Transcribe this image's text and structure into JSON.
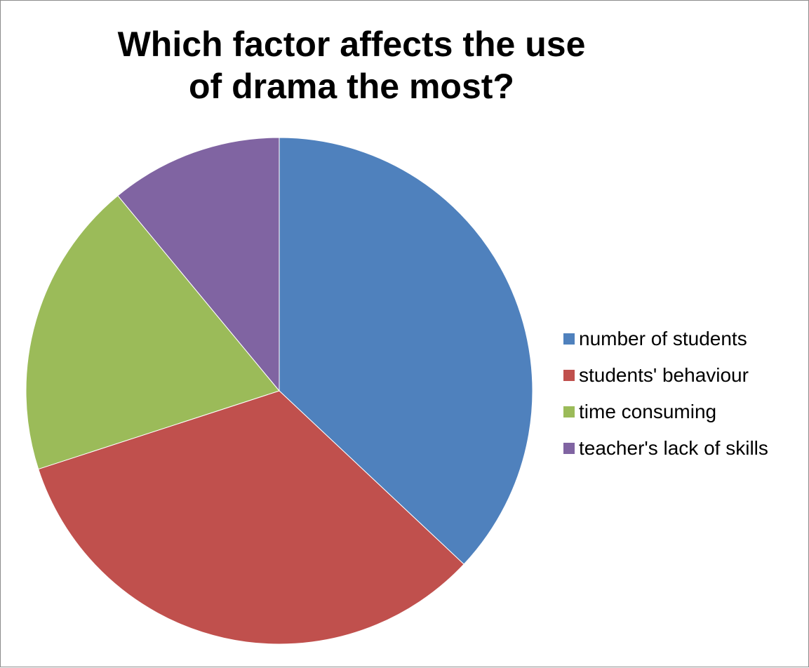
{
  "chart_data": {
    "type": "pie",
    "title": "Which factor affects the use of drama the most?",
    "categories": [
      "number of students",
      "students' behaviour",
      "time consuming",
      "teacher's lack of skills"
    ],
    "values": [
      37,
      33,
      19,
      11
    ],
    "colors": [
      "#4F81BD",
      "#C0504D",
      "#9BBB59",
      "#8064A2"
    ],
    "legend_position": "right",
    "start_angle": "12 o'clock",
    "direction": "clockwise"
  }
}
